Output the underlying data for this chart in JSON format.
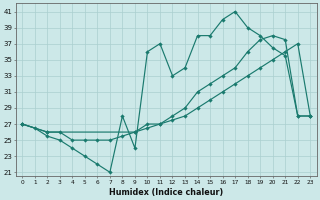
{
  "xlabel": "Humidex (Indice chaleur)",
  "ylabel": "",
  "bg_color": "#cce8e8",
  "grid_color": "#aacfcf",
  "line_color": "#1a7a6e",
  "xlim": [
    -0.5,
    23.5
  ],
  "ylim": [
    20.5,
    42
  ],
  "yticks": [
    21,
    23,
    25,
    27,
    29,
    31,
    33,
    35,
    37,
    39,
    41
  ],
  "xticks": [
    0,
    1,
    2,
    3,
    4,
    5,
    6,
    7,
    8,
    9,
    10,
    11,
    12,
    13,
    14,
    15,
    16,
    17,
    18,
    19,
    20,
    21,
    22,
    23
  ],
  "line1_x": [
    0,
    1,
    2,
    3,
    4,
    5,
    6,
    7,
    8,
    9,
    10,
    11,
    12,
    13,
    14,
    15,
    16,
    17,
    18,
    19,
    20,
    21,
    22,
    23
  ],
  "line1_y": [
    27,
    26.5,
    25.5,
    25,
    24,
    23,
    22,
    21,
    28,
    24,
    36,
    37,
    33,
    34,
    38,
    38,
    40,
    41,
    39,
    38,
    36.5,
    35.5,
    28,
    28
  ],
  "line2_x": [
    0,
    2,
    3,
    4,
    5,
    6,
    7,
    8,
    9,
    10,
    11,
    12,
    13,
    14,
    15,
    16,
    17,
    18,
    19,
    20,
    21,
    22,
    23
  ],
  "line2_y": [
    27,
    26,
    26,
    25,
    25,
    25,
    25,
    25.5,
    26,
    27,
    27,
    28,
    29,
    31,
    32,
    33,
    34,
    36,
    37.5,
    38,
    37.5,
    28,
    28
  ],
  "line3_x": [
    0,
    2,
    9,
    10,
    11,
    12,
    13,
    14,
    15,
    16,
    17,
    18,
    19,
    20,
    21,
    22,
    23
  ],
  "line3_y": [
    27,
    26,
    26,
    26.5,
    27,
    27.5,
    28,
    29,
    30,
    31,
    32,
    33,
    34,
    35,
    36,
    37,
    28
  ]
}
